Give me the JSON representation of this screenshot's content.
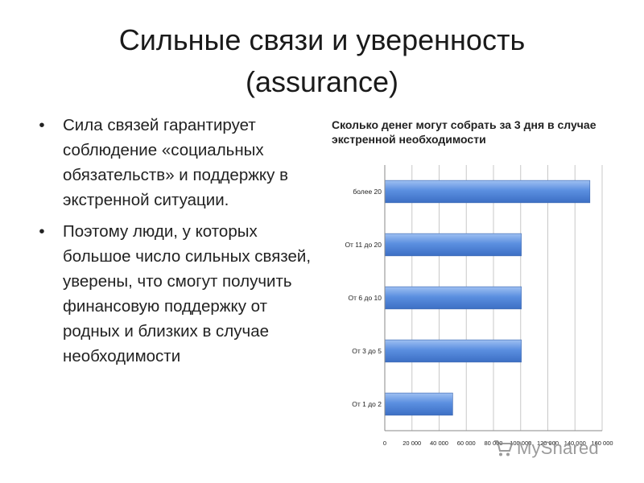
{
  "slide": {
    "title_line1": "Сильные связи и уверенность",
    "title_line2": "(assurance)",
    "bullets": [
      "Сила связей гарантирует соблюдение «социальных обязательств» и поддержку в экстренной ситуации.",
      "Поэтому люди, у которых большое число сильных связей, уверены, что смогут получить финансовую поддержку от родных и близких в случае необходимости"
    ],
    "bullet_glyph": "•"
  },
  "chart_data": {
    "type": "bar",
    "orientation": "horizontal",
    "title": "Сколько денег могут собрать за 3 дня в случае экстренной необходимости",
    "categories": [
      "более 20",
      "От 11 до 20",
      "От 6 до 10",
      "От 3 до 5",
      "От 1 до 2"
    ],
    "values": [
      151000,
      100500,
      100500,
      100500,
      50000
    ],
    "xlim": [
      0,
      160000
    ],
    "x_ticks": [
      0,
      20000,
      40000,
      60000,
      80000,
      100000,
      120000,
      140000,
      160000
    ],
    "x_tick_labels": [
      "0",
      "20 000",
      "40 000",
      "60 000",
      "80 000",
      "100 000",
      "120 000",
      "140 000",
      "160 000"
    ],
    "grid": true,
    "legend": "none",
    "bar_color": "#4f81d6"
  },
  "watermark": {
    "text": "MyShared",
    "icon": "shopping-cart-icon"
  }
}
